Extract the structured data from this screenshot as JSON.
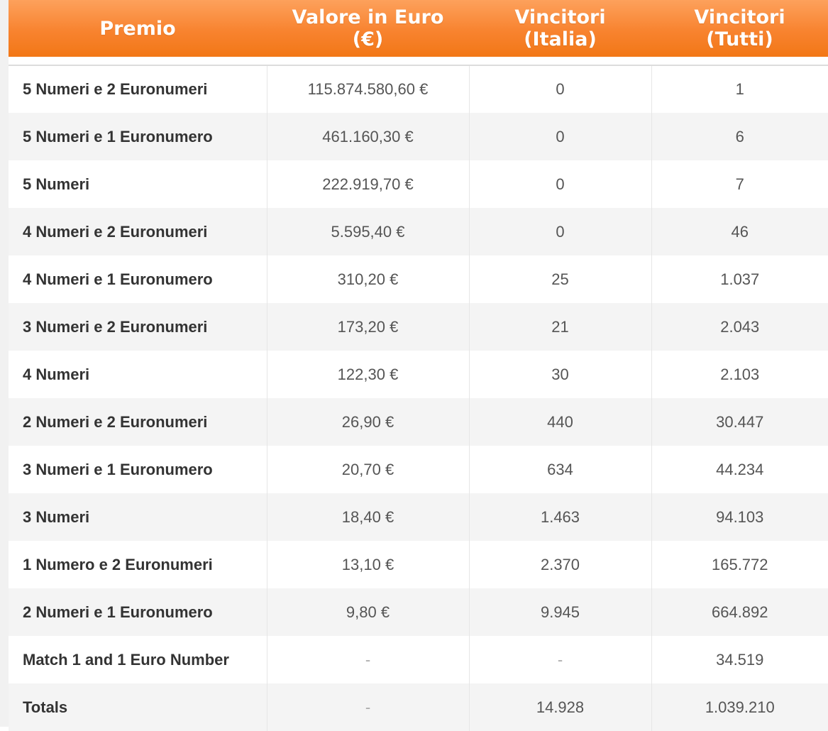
{
  "table": {
    "headers": {
      "prize": [
        "Premio"
      ],
      "value": [
        "Valore in Euro",
        "(€)"
      ],
      "winners_italy": [
        "Vincitori",
        "(Italia)"
      ],
      "winners_all": [
        "Vincitori",
        "(Tutti)"
      ]
    },
    "rows": [
      {
        "prize": "5 Numeri e 2 Euronumeri",
        "value": "115.874.580,60 €",
        "winners_italy": "0",
        "winners_all": "1"
      },
      {
        "prize": "5 Numeri e 1 Euronumero",
        "value": "461.160,30 €",
        "winners_italy": "0",
        "winners_all": "6"
      },
      {
        "prize": "5 Numeri",
        "value": "222.919,70 €",
        "winners_italy": "0",
        "winners_all": "7"
      },
      {
        "prize": "4 Numeri e 2 Euronumeri",
        "value": "5.595,40 €",
        "winners_italy": "0",
        "winners_all": "46"
      },
      {
        "prize": "4 Numeri e 1 Euronumero",
        "value": "310,20 €",
        "winners_italy": "25",
        "winners_all": "1.037"
      },
      {
        "prize": "3 Numeri e 2 Euronumeri",
        "value": "173,20 €",
        "winners_italy": "21",
        "winners_all": "2.043"
      },
      {
        "prize": "4 Numeri",
        "value": "122,30 €",
        "winners_italy": "30",
        "winners_all": "2.103"
      },
      {
        "prize": "2 Numeri e 2 Euronumeri",
        "value": "26,90 €",
        "winners_italy": "440",
        "winners_all": "30.447"
      },
      {
        "prize": "3 Numeri e 1 Euronumero",
        "value": "20,70 €",
        "winners_italy": "634",
        "winners_all": "44.234"
      },
      {
        "prize": "3 Numeri",
        "value": "18,40 €",
        "winners_italy": "1.463",
        "winners_all": "94.103"
      },
      {
        "prize": "1 Numero e 2 Euronumeri",
        "value": "13,10 €",
        "winners_italy": "2.370",
        "winners_all": "165.772"
      },
      {
        "prize": "2 Numeri e 1 Euronumero",
        "value": "9,80 €",
        "winners_italy": "9.945",
        "winners_all": "664.892"
      },
      {
        "prize": "Match 1 and 1 Euro Number",
        "value": "-",
        "winners_italy": "-",
        "winners_all": "34.519"
      },
      {
        "prize": "Totals",
        "value": "-",
        "winners_italy": "14.928",
        "winners_all": "1.039.210"
      }
    ]
  },
  "colors": {
    "header_top": "#fda15c",
    "header_bottom": "#f27716",
    "header_text": "#ffffff",
    "row_alt": "#f4f4f4"
  }
}
